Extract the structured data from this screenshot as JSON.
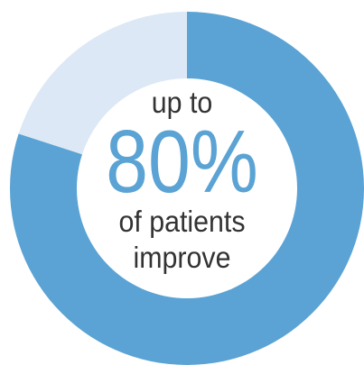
{
  "chart_data": {
    "type": "pie",
    "variant": "donut",
    "values": [
      80,
      20
    ],
    "colors": [
      "#5aa3d4",
      "#dce8f5"
    ],
    "center_text": {
      "prefix": "up to",
      "value": "80%",
      "suffix_line1": "of patients",
      "suffix_line2": "improve"
    },
    "center_value_color": "#5aa3d4",
    "center_text_color": "#333333"
  }
}
